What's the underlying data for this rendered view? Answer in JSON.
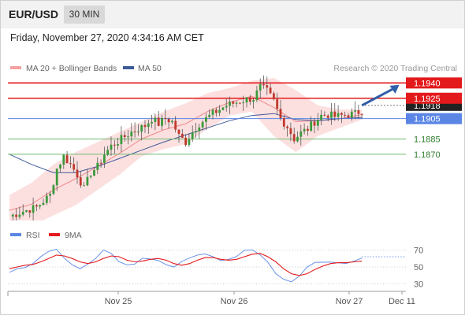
{
  "header": {
    "pair": "EUR/USD",
    "timeframe": "30 MIN"
  },
  "datetime": "Friday, November 27, 2020 4:34:16 AM CET",
  "legend": {
    "bb_label": "MA 20 + Bollinger Bands",
    "ma50_label": "MA 50",
    "credit": "Research © 2020 Trading Central",
    "rsi_label": "RSI",
    "rsi_ma_label": "9MA"
  },
  "colors": {
    "resistance": "#e31a1c",
    "support": "#6fba6f",
    "pivot": "#5b86e5",
    "bb_fill": "#fce0e0",
    "ma20": "#f08a8a",
    "ma50": "#3d5a99",
    "rsi": "#5b86e5",
    "rsi_ma": "#e31a1c",
    "arrow": "#2f5fa8"
  },
  "chart_data": [
    {
      "type": "candlestick",
      "title": "EUR/USD 30 MIN",
      "x_ticks": [
        "Nov 25",
        "Nov 26",
        "Nov 27",
        "Dec 11"
      ],
      "ylim": [
        1.1805,
        1.1948
      ],
      "levels": [
        {
          "value": 1.194,
          "label": "1.1940",
          "kind": "resistance",
          "tag": "box"
        },
        {
          "value": 1.1925,
          "label": "1.1925",
          "kind": "resistance",
          "tag": "box"
        },
        {
          "value": 1.1918,
          "label": "1.1918",
          "kind": "current",
          "tag": "box"
        },
        {
          "value": 1.1905,
          "label": "1.1905",
          "kind": "pivot",
          "tag": "box"
        },
        {
          "value": 1.1885,
          "label": "1.1885",
          "kind": "support",
          "tag": "text"
        },
        {
          "value": 1.187,
          "label": "1.1870",
          "kind": "support",
          "tag": "text"
        }
      ],
      "close_path": [
        [
          0,
          1.1809
        ],
        [
          4,
          1.1814
        ],
        [
          8,
          1.1818
        ],
        [
          12,
          1.183
        ],
        [
          14,
          1.1856
        ],
        [
          16,
          1.1868
        ],
        [
          18,
          1.186
        ],
        [
          20,
          1.185
        ],
        [
          22,
          1.1836
        ],
        [
          24,
          1.1852
        ],
        [
          26,
          1.1858
        ],
        [
          28,
          1.187
        ],
        [
          30,
          1.1878
        ],
        [
          33,
          1.1885
        ],
        [
          36,
          1.1892
        ],
        [
          40,
          1.1898
        ],
        [
          42,
          1.1905
        ],
        [
          44,
          1.19
        ],
        [
          46,
          1.1905
        ],
        [
          48,
          1.1902
        ],
        [
          50,
          1.1888
        ],
        [
          52,
          1.1882
        ],
        [
          54,
          1.1892
        ],
        [
          56,
          1.19
        ],
        [
          58,
          1.1905
        ],
        [
          60,
          1.191
        ],
        [
          62,
          1.1914
        ],
        [
          64,
          1.1918
        ],
        [
          66,
          1.192
        ],
        [
          68,
          1.1922
        ],
        [
          70,
          1.1924
        ],
        [
          72,
          1.1925
        ],
        [
          74,
          1.1936
        ],
        [
          76,
          1.1932
        ],
        [
          78,
          1.1922
        ],
        [
          80,
          1.1905
        ],
        [
          82,
          1.1897
        ],
        [
          84,
          1.1885
        ],
        [
          86,
          1.1891
        ],
        [
          88,
          1.1895
        ],
        [
          90,
          1.1902
        ],
        [
          92,
          1.1908
        ],
        [
          94,
          1.1909
        ],
        [
          96,
          1.1907
        ],
        [
          98,
          1.1908
        ],
        [
          100,
          1.1909
        ],
        [
          102,
          1.191
        ],
        [
          104,
          1.1913
        ]
      ],
      "bands": {
        "upper": [
          1.183,
          1.1842,
          1.186,
          1.1872,
          1.1882,
          1.1892,
          1.1902,
          1.1912,
          1.192,
          1.193,
          1.1935,
          1.1942,
          1.1945,
          1.1933,
          1.1918,
          1.1914,
          1.1914
        ],
        "lower": [
          1.18,
          1.18,
          1.181,
          1.182,
          1.1835,
          1.185,
          1.1868,
          1.1875,
          1.188,
          1.1895,
          1.1908,
          1.1912,
          1.1888,
          1.1872,
          1.1888,
          1.1896,
          1.1904
        ],
        "ma20": [
          1.1815,
          1.1821,
          1.1835,
          1.1846,
          1.1858,
          1.1871,
          1.1885,
          1.1894,
          1.19,
          1.1912,
          1.1921,
          1.1927,
          1.1916,
          1.1902,
          1.1903,
          1.1905,
          1.1909
        ],
        "ma50": [
          1.187,
          1.186,
          1.1852,
          1.1852,
          1.1858,
          1.1866,
          1.1874,
          1.1882,
          1.1889,
          1.1896,
          1.1903,
          1.1908,
          1.191,
          1.1904,
          1.1903,
          1.1905,
          1.1906
        ]
      },
      "arrow": {
        "from": [
          104,
          1.1918
        ],
        "to": [
          115,
          1.1938
        ]
      }
    },
    {
      "type": "line",
      "title": "RSI",
      "ylim": [
        25,
        75
      ],
      "y_ticks": [
        70,
        50,
        30
      ],
      "series": [
        {
          "name": "RSI",
          "values": [
            45,
            48,
            50,
            55,
            62,
            68,
            72,
            60,
            52,
            48,
            55,
            62,
            70,
            66,
            58,
            52,
            55,
            62,
            60,
            58,
            52,
            48,
            55,
            62,
            66,
            64,
            60,
            56,
            58,
            62,
            68,
            72,
            65,
            55,
            44,
            35,
            33,
            40,
            48,
            55,
            57,
            55,
            54,
            56,
            58,
            62
          ]
        },
        {
          "name": "9MA",
          "values": [
            48,
            50,
            52,
            53,
            56,
            60,
            64,
            63,
            60,
            56,
            54,
            56,
            60,
            63,
            62,
            58,
            56,
            57,
            59,
            60,
            58,
            54,
            52,
            54,
            58,
            61,
            61,
            59,
            58,
            59,
            62,
            65,
            66,
            62,
            56,
            48,
            42,
            40,
            42,
            47,
            51,
            54,
            55,
            55,
            56,
            57
          ]
        }
      ]
    }
  ]
}
